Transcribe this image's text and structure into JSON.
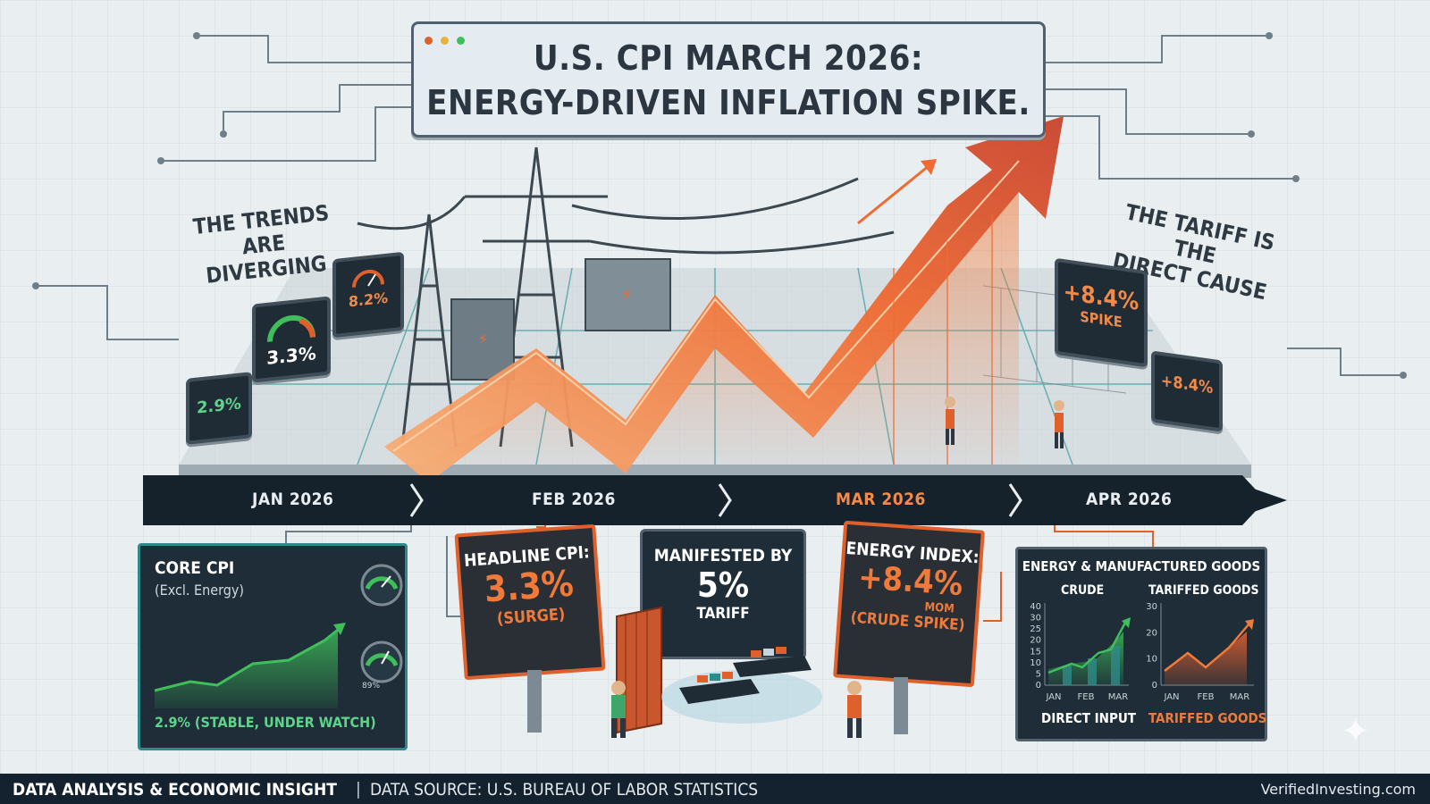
{
  "title": {
    "line1": "U.S. CPI MARCH 2026:",
    "line2": "ENERGY-DRIVEN INFLATION SPIKE."
  },
  "callouts": {
    "left": [
      "THE TRENDS",
      "ARE DIVERGING"
    ],
    "right": [
      "THE TARIFF IS THE",
      "DIRECT CAUSE"
    ]
  },
  "monitors": {
    "small_left": "2.9%",
    "gauge_left": "3.3%",
    "tall_left": "8.2%",
    "right_big_value": "+8.4%",
    "right_big_label": "SPIKE",
    "right_small_value": "+8.4%"
  },
  "timeline": {
    "labels": [
      "JAN 2026",
      "FEB 2026",
      "MAR 2026",
      "APR 2026"
    ]
  },
  "core_panel": {
    "title": "CORE CPI",
    "subtitle": "(Excl. Energy)",
    "footer": "2.9% (STABLE, UNDER WATCH)",
    "gauge_label": "89%"
  },
  "headline_panel": {
    "label": "HEADLINE CPI:",
    "value": "3.3%",
    "note": "(SURGE)"
  },
  "tariff_panel": {
    "line1": "MANIFESTED BY",
    "value": "5%",
    "line3": "TARIFF"
  },
  "energy_panel": {
    "label": "ENERGY INDEX:",
    "value": "+8.4%",
    "unit": "MOM",
    "note": "(CRUDE SPIKE)"
  },
  "goods_panel": {
    "title": "ENERGY & MANUFACTURED GOODS",
    "left_title": "CRUDE",
    "right_title": "TARIFFED GOODS",
    "left_footer": "DIRECT INPUT",
    "right_footer": "TARIFFED GOODS",
    "left_ticks": [
      "40",
      "30",
      "25",
      "20",
      "15",
      "10",
      "5",
      "0"
    ],
    "right_ticks": [
      "30",
      "20",
      "10",
      "0"
    ],
    "months": [
      "JAN",
      "FEB",
      "MAR"
    ]
  },
  "footer": {
    "left_bold": "DATA ANALYSIS & ECONOMIC INSIGHT",
    "separator": "|",
    "left_source": "DATA SOURCE: U.S. BUREAU OF LABOR STATISTICS",
    "right": "VerifiedInvesting.com"
  },
  "colors": {
    "accent_orange": "#e0602b",
    "teal": "#2f8b8a",
    "navy": "#1e2d38",
    "green": "#3fbf5a"
  }
}
